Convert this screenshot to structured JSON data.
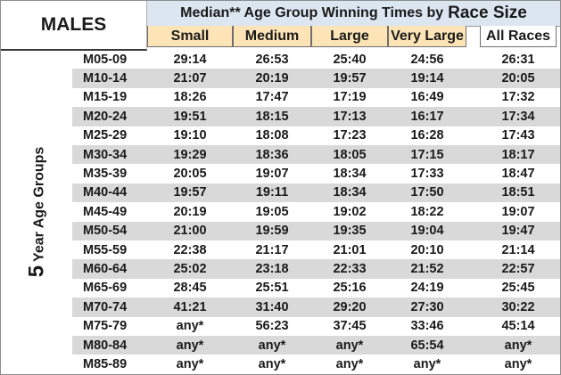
{
  "header": {
    "sex_label": "MALES",
    "title_prefix": "Median** Age Group Winning Times by",
    "title_emph": "Race Size"
  },
  "columns": [
    "Small",
    "Medium",
    "Large",
    "Very Large",
    "All Races"
  ],
  "side_label": {
    "number": "5",
    "text": "Year Age Groups"
  },
  "rows": [
    {
      "group": "M05-09",
      "values": [
        "29:14",
        "26:53",
        "25:40",
        "24:56",
        "26:31"
      ]
    },
    {
      "group": "M10-14",
      "values": [
        "21:07",
        "20:19",
        "19:57",
        "19:14",
        "20:05"
      ]
    },
    {
      "group": "M15-19",
      "values": [
        "18:26",
        "17:47",
        "17:19",
        "16:49",
        "17:32"
      ]
    },
    {
      "group": "M20-24",
      "values": [
        "19:51",
        "18:15",
        "17:13",
        "16:17",
        "17:34"
      ]
    },
    {
      "group": "M25-29",
      "values": [
        "19:10",
        "18:08",
        "17:23",
        "16:28",
        "17:43"
      ]
    },
    {
      "group": "M30-34",
      "values": [
        "19:29",
        "18:36",
        "18:05",
        "17:15",
        "18:17"
      ]
    },
    {
      "group": "M35-39",
      "values": [
        "20:05",
        "19:07",
        "18:34",
        "17:33",
        "18:47"
      ]
    },
    {
      "group": "M40-44",
      "values": [
        "19:57",
        "19:11",
        "18:34",
        "17:50",
        "18:51"
      ]
    },
    {
      "group": "M45-49",
      "values": [
        "20:19",
        "19:05",
        "19:02",
        "18:22",
        "19:07"
      ]
    },
    {
      "group": "M50-54",
      "values": [
        "21:00",
        "19:59",
        "19:35",
        "19:04",
        "19:47"
      ]
    },
    {
      "group": "M55-59",
      "values": [
        "22:38",
        "21:17",
        "21:01",
        "20:10",
        "21:14"
      ]
    },
    {
      "group": "M60-64",
      "values": [
        "25:02",
        "23:18",
        "22:33",
        "21:52",
        "22:57"
      ]
    },
    {
      "group": "M65-69",
      "values": [
        "28:45",
        "25:51",
        "25:16",
        "24:19",
        "25:45"
      ]
    },
    {
      "group": "M70-74",
      "values": [
        "41:21",
        "31:40",
        "29:20",
        "27:30",
        "30:22"
      ]
    },
    {
      "group": "M75-79",
      "values": [
        "any*",
        "56:23",
        "37:45",
        "33:46",
        "45:14"
      ]
    },
    {
      "group": "M80-84",
      "values": [
        "any*",
        "any*",
        "any*",
        "65:54",
        "any*"
      ]
    },
    {
      "group": "M85-89",
      "values": [
        "any*",
        "any*",
        "any*",
        "any*",
        "any*"
      ]
    }
  ]
}
